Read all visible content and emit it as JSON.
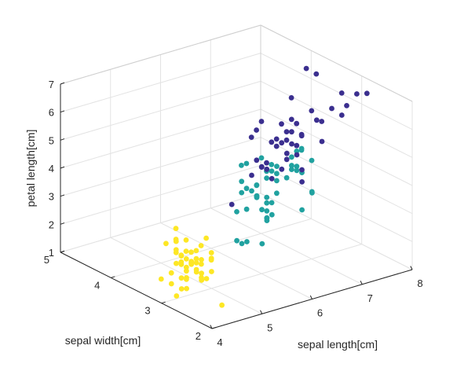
{
  "chart_data": {
    "type": "scatter",
    "projection": "3d",
    "grid": true,
    "xlabel": "sepal length[cm]",
    "ylabel": "sepal width[cm]",
    "zlabel": "petal length[cm]",
    "xlim": [
      4,
      8
    ],
    "ylim": [
      2,
      5
    ],
    "zlim": [
      1,
      7
    ],
    "xticks": [
      "4",
      "5",
      "6",
      "7",
      "8"
    ],
    "yticks": [
      "2",
      "3",
      "4",
      "5"
    ],
    "zticks": [
      "1",
      "2",
      "3",
      "4",
      "5",
      "6",
      "7"
    ],
    "series": [
      {
        "color": "#fde725",
        "points": [
          [
            4.3,
            3.0,
            1.1
          ],
          [
            4.4,
            2.9,
            1.4
          ],
          [
            4.4,
            3.0,
            1.3
          ],
          [
            4.4,
            3.2,
            1.3
          ],
          [
            4.5,
            2.3,
            1.3
          ],
          [
            4.6,
            3.1,
            1.5
          ],
          [
            4.6,
            3.4,
            1.4
          ],
          [
            4.6,
            3.6,
            1.0
          ],
          [
            4.6,
            3.2,
            1.4
          ],
          [
            4.7,
            3.2,
            1.3
          ],
          [
            4.7,
            3.2,
            1.6
          ],
          [
            4.8,
            3.4,
            1.6
          ],
          [
            4.8,
            3.0,
            1.4
          ],
          [
            4.8,
            3.4,
            1.9
          ],
          [
            4.8,
            3.1,
            1.6
          ],
          [
            4.8,
            3.0,
            1.4
          ],
          [
            4.9,
            3.0,
            1.4
          ],
          [
            4.9,
            3.1,
            1.5
          ],
          [
            4.9,
            3.6,
            1.4
          ],
          [
            5.0,
            3.6,
            1.4
          ],
          [
            5.0,
            3.4,
            1.5
          ],
          [
            5.0,
            3.0,
            1.6
          ],
          [
            5.0,
            3.4,
            1.6
          ],
          [
            5.0,
            3.2,
            1.2
          ],
          [
            5.0,
            3.5,
            1.3
          ],
          [
            5.0,
            3.5,
            1.6
          ],
          [
            5.0,
            3.3,
            1.4
          ],
          [
            5.1,
            3.5,
            1.4
          ],
          [
            5.1,
            3.7,
            1.5
          ],
          [
            5.1,
            3.3,
            1.7
          ],
          [
            5.1,
            3.8,
            1.5
          ],
          [
            5.1,
            3.4,
            1.5
          ],
          [
            5.1,
            3.8,
            1.9
          ],
          [
            5.1,
            3.8,
            1.6
          ],
          [
            5.2,
            3.5,
            1.5
          ],
          [
            5.2,
            3.4,
            1.4
          ],
          [
            5.2,
            4.1,
            1.5
          ],
          [
            5.3,
            3.7,
            1.5
          ],
          [
            5.4,
            3.9,
            1.7
          ],
          [
            5.4,
            3.7,
            1.5
          ],
          [
            5.4,
            3.9,
            1.3
          ],
          [
            5.4,
            3.4,
            1.7
          ],
          [
            5.4,
            3.4,
            1.5
          ],
          [
            5.5,
            4.2,
            1.4
          ],
          [
            5.5,
            3.5,
            1.3
          ],
          [
            5.7,
            4.4,
            1.5
          ],
          [
            5.7,
            3.8,
            1.7
          ],
          [
            5.8,
            4.0,
            1.2
          ]
        ]
      },
      {
        "color": "#21a2a0",
        "points": [
          [
            4.9,
            2.4,
            3.3
          ],
          [
            5.0,
            2.0,
            3.5
          ],
          [
            5.0,
            2.3,
            3.3
          ],
          [
            5.1,
            2.5,
            3.0
          ],
          [
            5.2,
            2.7,
            3.9
          ],
          [
            5.5,
            2.3,
            4.0
          ],
          [
            5.5,
            2.4,
            3.8
          ],
          [
            5.5,
            2.4,
            3.7
          ],
          [
            5.5,
            2.5,
            4.0
          ],
          [
            5.5,
            2.6,
            4.4
          ],
          [
            5.6,
            2.9,
            3.6
          ],
          [
            5.6,
            3.0,
            4.5
          ],
          [
            5.6,
            2.5,
            3.9
          ],
          [
            5.6,
            3.0,
            4.1
          ],
          [
            5.6,
            2.7,
            4.2
          ],
          [
            5.7,
            2.8,
            4.5
          ],
          [
            5.7,
            2.6,
            3.5
          ],
          [
            5.7,
            3.0,
            4.2
          ],
          [
            5.7,
            2.9,
            4.2
          ],
          [
            5.7,
            2.8,
            4.1
          ],
          [
            5.8,
            2.7,
            4.1
          ],
          [
            5.8,
            2.7,
            3.9
          ],
          [
            5.8,
            2.6,
            4.0
          ],
          [
            5.9,
            3.0,
            4.2
          ],
          [
            5.9,
            3.2,
            4.8
          ],
          [
            6.0,
            2.2,
            4.0
          ],
          [
            6.0,
            2.9,
            4.5
          ],
          [
            6.0,
            2.7,
            5.1
          ],
          [
            6.0,
            3.4,
            4.5
          ],
          [
            6.1,
            2.9,
            4.7
          ],
          [
            6.1,
            2.8,
            4.0
          ],
          [
            6.1,
            2.8,
            4.7
          ],
          [
            6.1,
            3.0,
            4.6
          ],
          [
            6.2,
            2.2,
            4.5
          ],
          [
            6.2,
            2.9,
            4.3
          ],
          [
            6.3,
            3.3,
            4.7
          ],
          [
            6.3,
            2.5,
            4.9
          ],
          [
            6.3,
            2.3,
            4.4
          ],
          [
            6.4,
            3.2,
            4.5
          ],
          [
            6.4,
            2.9,
            4.3
          ],
          [
            6.5,
            2.8,
            4.6
          ],
          [
            6.6,
            2.9,
            4.6
          ],
          [
            6.6,
            3.0,
            4.4
          ],
          [
            6.7,
            3.1,
            4.4
          ],
          [
            6.7,
            3.0,
            5.0
          ],
          [
            6.7,
            3.1,
            4.7
          ],
          [
            6.8,
            2.8,
            4.8
          ],
          [
            6.9,
            3.1,
            4.9
          ],
          [
            7.0,
            3.2,
            4.7
          ]
        ]
      },
      {
        "color": "#3b2f8f",
        "points": [
          [
            4.9,
            2.5,
            4.5
          ],
          [
            5.6,
            2.8,
            4.9
          ],
          [
            5.7,
            2.5,
            5.0
          ],
          [
            5.8,
            2.7,
            5.1
          ],
          [
            5.8,
            2.8,
            5.1
          ],
          [
            5.8,
            2.7,
            5.1
          ],
          [
            5.9,
            3.0,
            5.1
          ],
          [
            6.0,
            2.2,
            5.0
          ],
          [
            6.0,
            3.0,
            4.8
          ],
          [
            6.1,
            3.0,
            4.9
          ],
          [
            6.1,
            2.6,
            5.6
          ],
          [
            6.2,
            3.4,
            5.4
          ],
          [
            6.2,
            2.8,
            4.8
          ],
          [
            6.3,
            3.3,
            6.0
          ],
          [
            6.3,
            2.9,
            5.6
          ],
          [
            6.3,
            2.5,
            5.0
          ],
          [
            6.3,
            2.8,
            5.1
          ],
          [
            6.3,
            3.4,
            5.6
          ],
          [
            6.4,
            2.7,
            5.3
          ],
          [
            6.4,
            3.2,
            5.3
          ],
          [
            6.4,
            2.8,
            5.6
          ],
          [
            6.4,
            3.1,
            5.5
          ],
          [
            6.5,
            3.0,
            5.8
          ],
          [
            6.5,
            3.0,
            5.5
          ],
          [
            6.5,
            3.2,
            5.1
          ],
          [
            6.7,
            2.5,
            5.8
          ],
          [
            6.7,
            3.3,
            5.7
          ],
          [
            6.7,
            3.0,
            5.2
          ],
          [
            6.7,
            3.1,
            5.6
          ],
          [
            6.8,
            3.0,
            5.5
          ],
          [
            6.8,
            3.2,
            5.9
          ],
          [
            6.9,
            3.2,
            5.7
          ],
          [
            6.9,
            3.1,
            5.4
          ],
          [
            7.1,
            3.0,
            5.9
          ],
          [
            7.2,
            3.6,
            6.1
          ],
          [
            7.2,
            3.2,
            6.0
          ],
          [
            7.2,
            3.0,
            5.8
          ],
          [
            7.3,
            2.9,
            6.3
          ],
          [
            7.4,
            2.8,
            6.1
          ],
          [
            7.6,
            3.0,
            6.6
          ],
          [
            7.7,
            3.8,
            6.7
          ],
          [
            7.7,
            2.6,
            6.9
          ],
          [
            7.7,
            2.8,
            6.7
          ],
          [
            7.7,
            3.0,
            6.1
          ],
          [
            7.9,
            3.8,
            6.4
          ]
        ]
      }
    ]
  }
}
